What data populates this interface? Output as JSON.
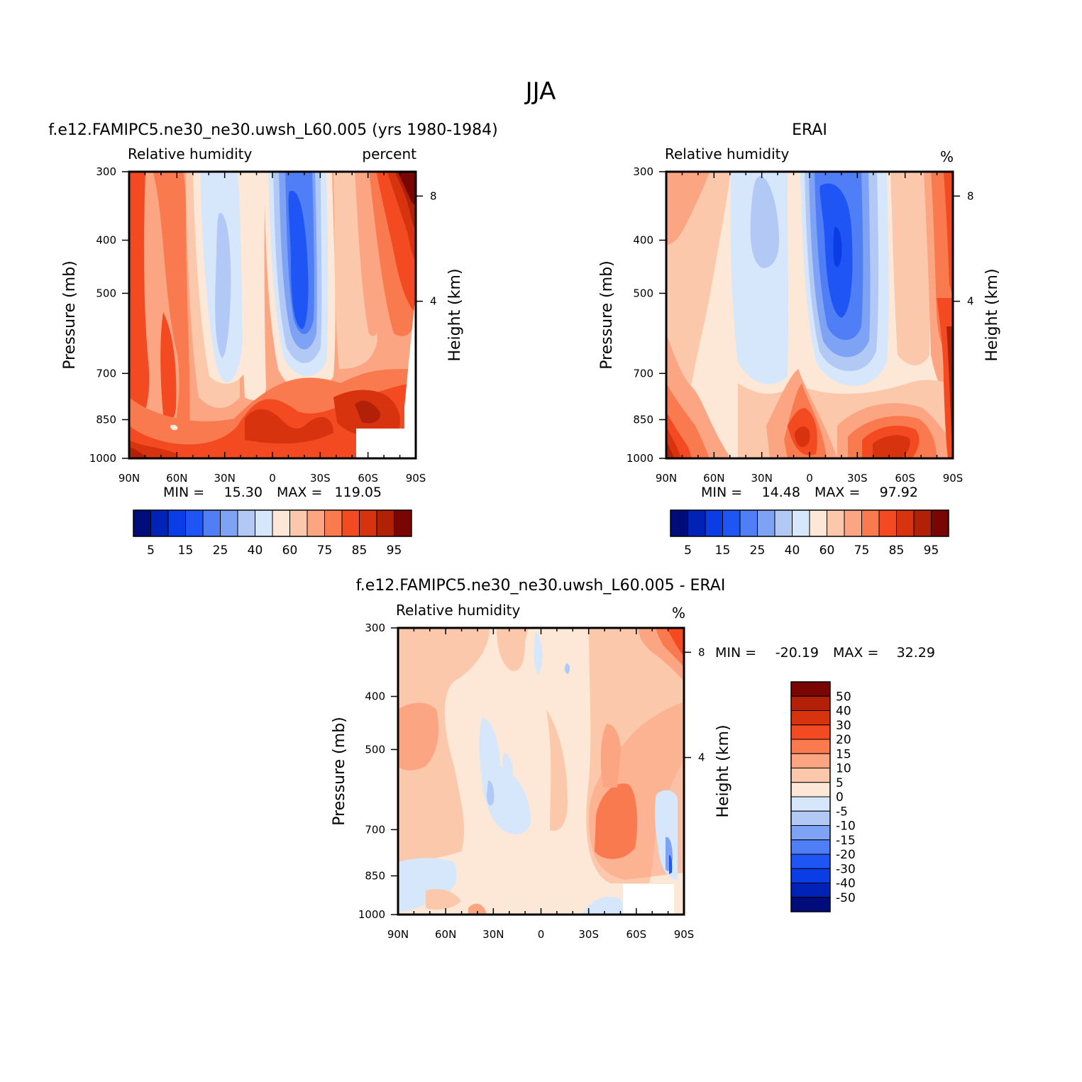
{
  "figure_title": "JJA",
  "chart_data": [
    {
      "id": "model",
      "type": "contour",
      "title": "f.e12.FAMIPC5.ne30_ne30.uwsh_L60.005 (yrs 1980-1984)",
      "field_label": "Relative humidity",
      "units_label": "percent",
      "ylabel": "Pressure (mb)",
      "ylabel_right": "Height (km)",
      "x_ticks": [
        "90N",
        "60N",
        "30N",
        "0",
        "30S",
        "60S",
        "90S"
      ],
      "y_ticks": [
        "300",
        "400",
        "500",
        "700",
        "850",
        "1000"
      ],
      "y_ticks_right": [
        "8",
        "4"
      ],
      "min_label": "MIN =",
      "min_value": "15.30",
      "max_label": "MAX =",
      "max_value": "119.05",
      "colorbar_labels": [
        "5",
        "15",
        "25",
        "40",
        "60",
        "75",
        "85",
        "95"
      ]
    },
    {
      "id": "obs",
      "type": "contour",
      "title": "ERAI",
      "field_label": "Relative humidity",
      "units_label": "%",
      "ylabel": "Pressure (mb)",
      "ylabel_right": "Height (km)",
      "x_ticks": [
        "90N",
        "60N",
        "30N",
        "0",
        "30S",
        "60S",
        "90S"
      ],
      "y_ticks": [
        "300",
        "400",
        "500",
        "700",
        "850",
        "1000"
      ],
      "y_ticks_right": [
        "8",
        "4"
      ],
      "min_label": "MIN =",
      "min_value": "14.48",
      "max_label": "MAX =",
      "max_value": "97.92",
      "colorbar_labels": [
        "5",
        "15",
        "25",
        "40",
        "60",
        "75",
        "85",
        "95"
      ]
    },
    {
      "id": "diff",
      "type": "contour",
      "title": "f.e12.FAMIPC5.ne30_ne30.uwsh_L60.005 - ERAI",
      "field_label": "Relative humidity",
      "units_label": "%",
      "ylabel": "Pressure (mb)",
      "ylabel_right": "Height (km)",
      "x_ticks": [
        "90N",
        "60N",
        "30N",
        "0",
        "30S",
        "60S",
        "90S"
      ],
      "y_ticks": [
        "300",
        "400",
        "500",
        "700",
        "850",
        "1000"
      ],
      "y_ticks_right": [
        "8",
        "4"
      ],
      "min_label": "MIN =",
      "min_value": "-20.19",
      "max_label": "MAX =",
      "max_value": "32.29",
      "colorbar_labels": [
        "50",
        "40",
        "30",
        "20",
        "15",
        "10",
        "5",
        "0",
        "-5",
        "-10",
        "-15",
        "-20",
        "-30",
        "-40",
        "-50"
      ]
    }
  ],
  "palettes": {
    "absolute": [
      "#000c7a",
      "#0022b6",
      "#0a3de6",
      "#1f55f5",
      "#4f7ef6",
      "#7ea2f4",
      "#b2c9f6",
      "#d7e7fb",
      "#fde8d7",
      "#fcc8ab",
      "#fba582",
      "#fa7a50",
      "#f44a22",
      "#d7330f",
      "#b22007",
      "#7a0603"
    ],
    "difference": [
      "#000c7a",
      "#0022b6",
      "#0a3de6",
      "#1f55f5",
      "#4f7ef6",
      "#7ea2f4",
      "#b2c9f6",
      "#d7e7fb",
      "#fde8d7",
      "#fcc8ab",
      "#fba582",
      "#fa7a50",
      "#f44a22",
      "#d7330f",
      "#b22007",
      "#7a0603"
    ]
  }
}
